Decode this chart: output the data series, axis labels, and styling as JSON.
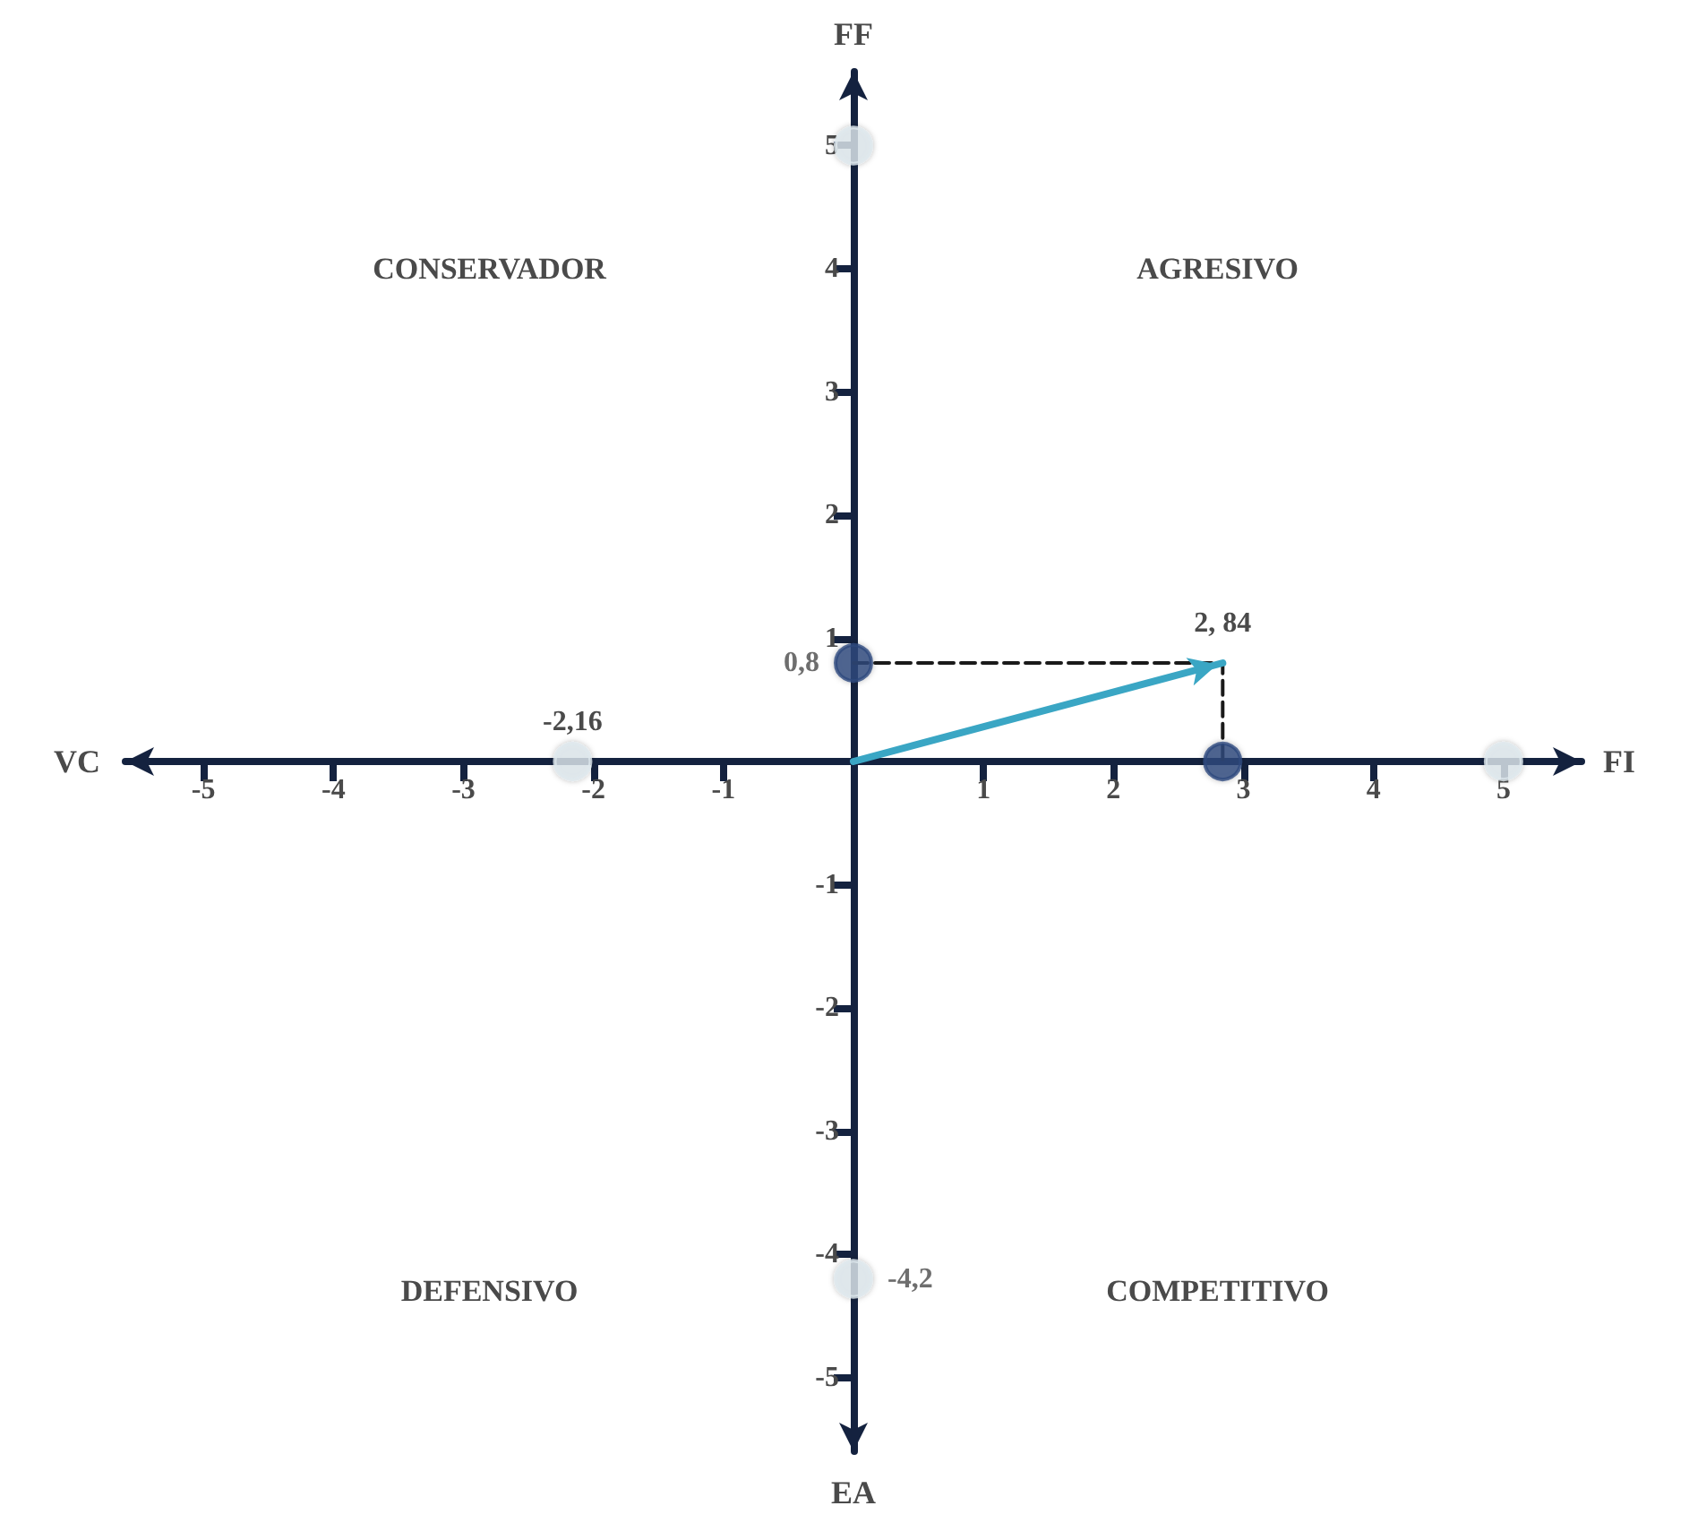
{
  "chart_data": {
    "type": "scatter",
    "xlabel": "FI",
    "ylabel": "FF",
    "annotations": [
      "VC",
      "EA",
      "CONSERVADOR",
      "AGRESIVO",
      "DEFENSIVO",
      "COMPETITIVO",
      {
        "text": "-2,16",
        "x": -2.16,
        "y": 0
      },
      {
        "text": "2, 84",
        "x": 2.84,
        "y": 0.8
      }
    ],
    "xlim": [
      -5.6,
      5.6
    ],
    "ylim": [
      -5.6,
      5.6
    ],
    "xticks": [
      -5,
      -4,
      -3,
      -2,
      -1,
      1,
      2,
      3,
      4,
      5
    ],
    "yticks": [
      -5,
      -4,
      -3,
      -2,
      -1,
      1,
      2,
      3,
      4,
      5
    ],
    "series": [
      {
        "type": "line",
        "line_style": "dashed",
        "color": "#1a1a1a",
        "x": [
          0,
          2.84,
          2.84
        ],
        "values": [
          0.8,
          0.8,
          0
        ]
      },
      {
        "type": "line",
        "line_style": "solid",
        "color": "#3aa6c4",
        "x": [
          0,
          2.84
        ],
        "values": [
          0,
          0.8
        ]
      },
      {
        "color": "#dfe9ee",
        "x": [
          -2.16,
          5,
          0,
          0
        ],
        "values": [
          0,
          0,
          5,
          -4.2
        ],
        "value_labels": [
          null,
          null,
          null,
          "-4,2"
        ]
      },
      {
        "color": "#2e4a7e",
        "x": [
          0,
          2.84
        ],
        "values": [
          0.8,
          0
        ],
        "value_labels": [
          "0,8",
          null
        ]
      }
    ]
  }
}
